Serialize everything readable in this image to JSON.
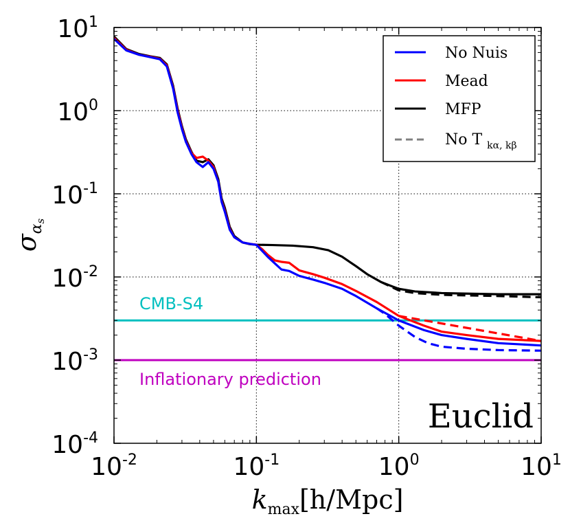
{
  "chart_data": {
    "type": "line",
    "title": "",
    "xlabel_main": "k",
    "xlabel_sub": "max",
    "xlabel_units": "[h/Mpc]",
    "ylabel_main": "σ",
    "ylabel_sub": "α",
    "ylabel_subsub": "s",
    "xscale": "log",
    "yscale": "log",
    "xlim": [
      0.01,
      10
    ],
    "ylim": [
      0.0001,
      10
    ],
    "grid": true,
    "x_ticks": [
      {
        "base": "10",
        "exp": "-2",
        "value": 0.01
      },
      {
        "base": "10",
        "exp": "-1",
        "value": 0.1
      },
      {
        "base": "10",
        "exp": "0",
        "value": 1
      },
      {
        "base": "10",
        "exp": "1",
        "value": 10
      }
    ],
    "y_ticks": [
      {
        "base": "10",
        "exp": "1",
        "value": 10
      },
      {
        "base": "10",
        "exp": "0",
        "value": 1
      },
      {
        "base": "10",
        "exp": "-1",
        "value": 0.1
      },
      {
        "base": "10",
        "exp": "-2",
        "value": 0.01
      },
      {
        "base": "10",
        "exp": "-3",
        "value": 0.001
      },
      {
        "base": "10",
        "exp": "-4",
        "value": 0.0001
      }
    ],
    "legend_position": "top-right",
    "legend": [
      {
        "label": "No Nuis",
        "color": "#0000ff",
        "dash": "solid"
      },
      {
        "label": "Mead",
        "color": "#ff0000",
        "dash": "solid"
      },
      {
        "label": "MFP",
        "color": "#000000",
        "dash": "solid"
      },
      {
        "label": "No T",
        "sub": "kα, kβ",
        "color": "#808080",
        "dash": "dashed"
      }
    ],
    "survey_label": "Euclid",
    "series": [
      {
        "name": "MFP",
        "color": "#000000",
        "dash": "solid",
        "x": [
          0.01,
          0.0122,
          0.015,
          0.018,
          0.021,
          0.0235,
          0.026,
          0.028,
          0.03,
          0.032,
          0.035,
          0.038,
          0.042,
          0.046,
          0.05,
          0.054,
          0.057,
          0.06,
          0.065,
          0.07,
          0.08,
          0.09,
          0.1,
          0.13,
          0.18,
          0.25,
          0.32,
          0.4,
          0.5,
          0.6,
          0.75,
          0.9,
          1.0,
          1.3,
          2.0,
          3.0,
          5.0,
          10.0
        ],
        "y": [
          7.8,
          5.5,
          4.8,
          4.5,
          4.3,
          3.6,
          2.0,
          1.05,
          0.65,
          0.45,
          0.32,
          0.25,
          0.24,
          0.26,
          0.22,
          0.15,
          0.088,
          0.068,
          0.04,
          0.031,
          0.026,
          0.0248,
          0.0244,
          0.0242,
          0.0238,
          0.0228,
          0.021,
          0.0175,
          0.0135,
          0.0108,
          0.0087,
          0.0077,
          0.0072,
          0.0067,
          0.0064,
          0.0063,
          0.0062,
          0.0062
        ]
      },
      {
        "name": "MFP (No T)",
        "color": "#000000",
        "dash": "dashed",
        "x": [
          0.75,
          0.9,
          1.0,
          1.3,
          2.0,
          3.0,
          5.0,
          10.0
        ],
        "y": [
          0.0087,
          0.0075,
          0.0069,
          0.0064,
          0.0061,
          0.006,
          0.0059,
          0.0057
        ]
      },
      {
        "name": "Mead",
        "color": "#ff0000",
        "dash": "solid",
        "x": [
          0.01,
          0.0122,
          0.015,
          0.018,
          0.021,
          0.0235,
          0.026,
          0.028,
          0.03,
          0.032,
          0.035,
          0.038,
          0.042,
          0.046,
          0.05,
          0.054,
          0.057,
          0.06,
          0.065,
          0.07,
          0.08,
          0.09,
          0.1,
          0.11,
          0.12,
          0.135,
          0.15,
          0.17,
          0.2,
          0.25,
          0.3,
          0.4,
          0.5,
          0.7,
          1.0,
          1.5,
          2.0,
          3.0,
          5.0,
          10.0
        ],
        "y": [
          7.5,
          5.4,
          4.7,
          4.45,
          4.2,
          3.5,
          1.9,
          1.0,
          0.62,
          0.43,
          0.31,
          0.27,
          0.28,
          0.25,
          0.21,
          0.14,
          0.082,
          0.063,
          0.038,
          0.03,
          0.026,
          0.025,
          0.0244,
          0.0215,
          0.0185,
          0.0158,
          0.0152,
          0.0148,
          0.012,
          0.0108,
          0.0098,
          0.0082,
          0.0068,
          0.005,
          0.0034,
          0.0026,
          0.0022,
          0.002,
          0.0018,
          0.0017
        ]
      },
      {
        "name": "No Nuis",
        "color": "#0000ff",
        "dash": "solid",
        "x": [
          0.01,
          0.0122,
          0.015,
          0.018,
          0.021,
          0.0235,
          0.026,
          0.028,
          0.03,
          0.032,
          0.035,
          0.038,
          0.042,
          0.046,
          0.05,
          0.054,
          0.057,
          0.06,
          0.065,
          0.07,
          0.08,
          0.09,
          0.1,
          0.11,
          0.12,
          0.135,
          0.15,
          0.17,
          0.2,
          0.25,
          0.3,
          0.4,
          0.5,
          0.7,
          1.0,
          1.5,
          2.0,
          3.0,
          5.0,
          10.0
        ],
        "y": [
          7.3,
          5.3,
          4.7,
          4.4,
          4.15,
          3.4,
          1.85,
          0.95,
          0.6,
          0.42,
          0.3,
          0.24,
          0.21,
          0.24,
          0.2,
          0.14,
          0.08,
          0.061,
          0.037,
          0.03,
          0.026,
          0.025,
          0.0243,
          0.0205,
          0.0175,
          0.0145,
          0.0123,
          0.0118,
          0.0103,
          0.0093,
          0.0085,
          0.0072,
          0.0059,
          0.0042,
          0.003,
          0.0023,
          0.002,
          0.0018,
          0.0016,
          0.0015
        ]
      },
      {
        "name": "No Nuis (No T)",
        "color": "#0000ff",
        "dash": "dashed",
        "x": [
          0.7,
          0.8,
          1.0,
          1.3,
          1.6,
          2.0,
          3.0,
          5.0,
          10.0
        ],
        "y": [
          0.0042,
          0.0036,
          0.0026,
          0.0019,
          0.0016,
          0.00145,
          0.00137,
          0.00132,
          0.0013
        ]
      },
      {
        "name": "Mead (No T)",
        "color": "#ff0000",
        "dash": "dashed",
        "x": [
          1.0,
          10.0
        ],
        "y": [
          0.0034,
          0.0017
        ]
      }
    ],
    "hlines": [
      {
        "name": "cmb-s4-line",
        "label": "CMB-S4",
        "y": 0.003,
        "color": "#00bfbf"
      },
      {
        "name": "inflationary-line",
        "label": "Inflationary prediction",
        "y": 0.001,
        "color": "#bf00bf"
      }
    ]
  }
}
